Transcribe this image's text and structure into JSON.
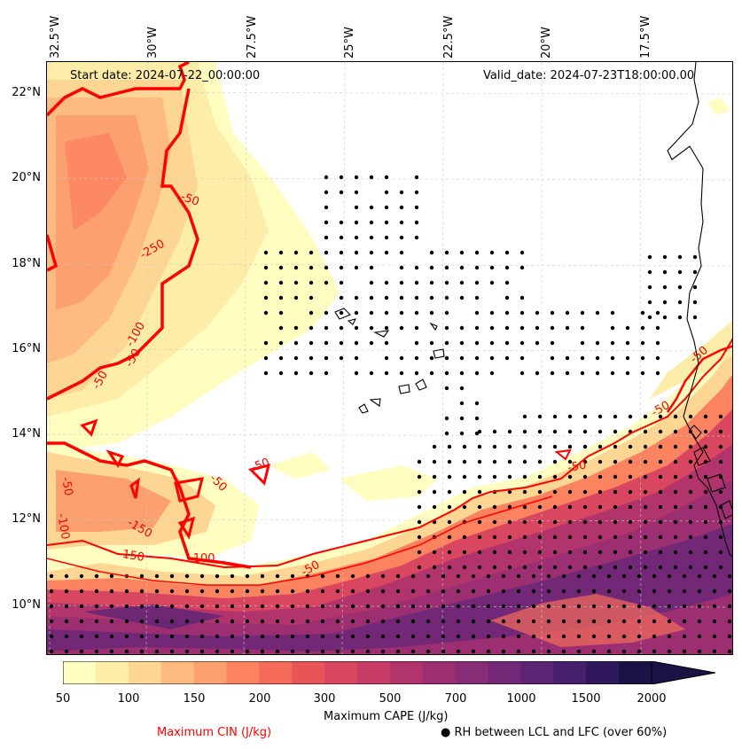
{
  "header": {
    "start_date": "Start date: 2024-07-22_00:00:00",
    "valid_date": "Valid_date: 2024-07-23T18:00:00.00"
  },
  "axes": {
    "longitude_labels": [
      "32.5°W",
      "30°W",
      "27.5°W",
      "25°W",
      "22.5°W",
      "20°W",
      "17.5°W"
    ],
    "latitude_labels": [
      "22°N",
      "20°N",
      "18°N",
      "16°N",
      "14°N",
      "12°N",
      "10°N"
    ],
    "lon_range": [
      -33,
      -15.5
    ],
    "lat_range": [
      9,
      22.5
    ]
  },
  "contours": {
    "cin_labels": [
      "-50",
      "-50",
      "-50",
      "-250",
      "-100",
      "-50",
      "-50",
      "-50",
      "-150",
      "-150",
      "-100",
      "-50",
      "-50",
      "-100",
      "-50",
      "-50"
    ],
    "cin_color": "#ff0000"
  },
  "colorbar": {
    "label": "Maximum CAPE (J/kg)",
    "ticks": [
      "50",
      "100",
      "150",
      "200",
      "300",
      "500",
      "700",
      "1000",
      "1500",
      "2000"
    ],
    "colors": [
      "#fffdbf",
      "#feeda8",
      "#fed693",
      "#feba7f",
      "#fda06f",
      "#fb8360",
      "#f46c59",
      "#e75559",
      "#d8465f",
      "#c63c67",
      "#b1346d",
      "#9c2f72",
      "#872c76",
      "#722876",
      "#5d2474",
      "#461f6d",
      "#2f185c",
      "#1a1346"
    ]
  },
  "legend": {
    "cin_label": "Maximum CIN (J/kg)",
    "rh_label": "RH between LCL and LFC (over 60%)",
    "rh_symbol": "●"
  }
}
